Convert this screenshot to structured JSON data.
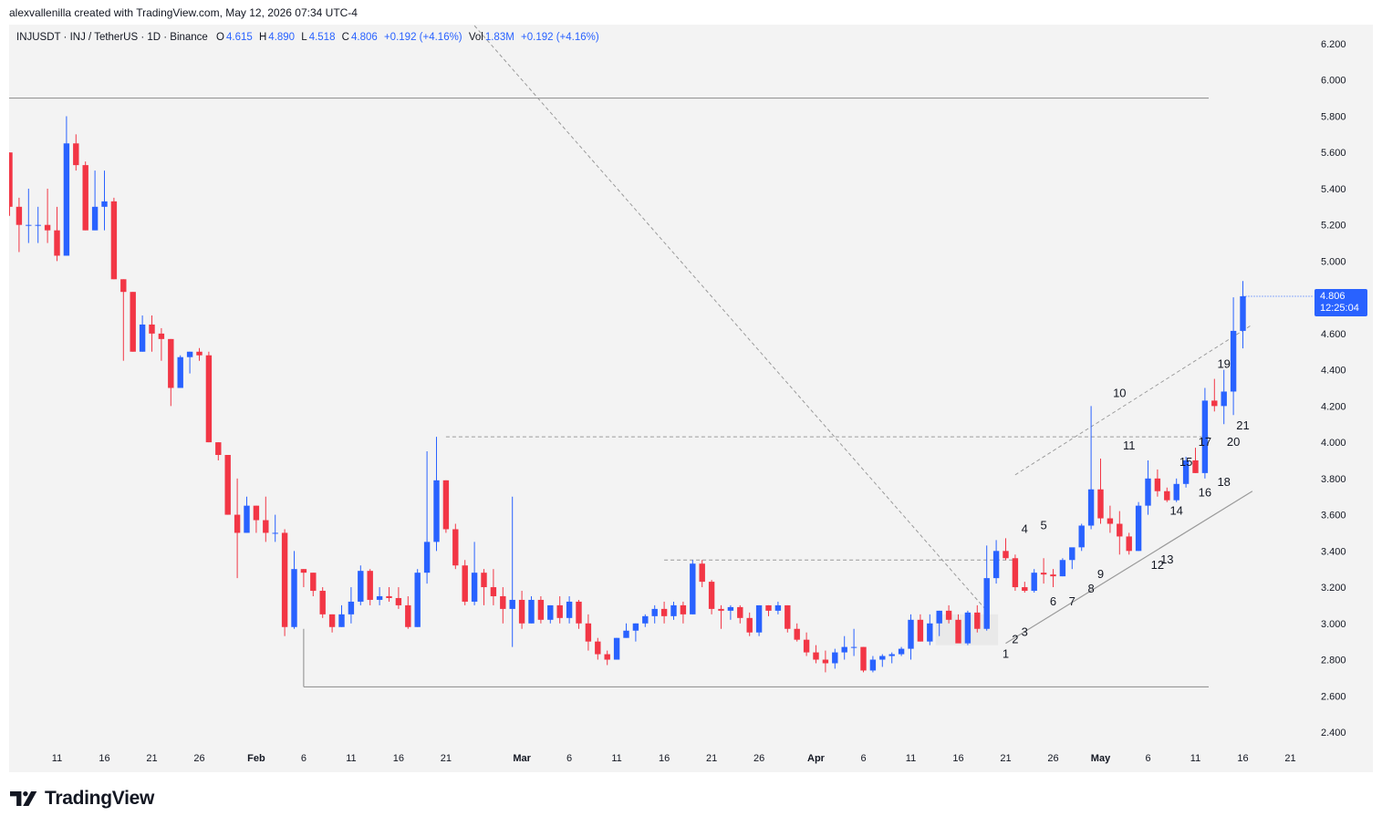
{
  "header": {
    "credit": "alexvallenilla created with TradingView.com, May 12, 2026 07:34 UTC-4"
  },
  "legend": {
    "symbol": "INJUSDT · INJ / TetherUS · 1D · Binance",
    "o_label": "O",
    "o_value": "4.615",
    "h_label": "H",
    "h_value": "4.890",
    "l_label": "L",
    "l_value": "4.518",
    "c_label": "C",
    "c_value": "4.806",
    "change": "+0.192 (+4.16%)",
    "vol_label": "Vol",
    "vol_value": "1.83M",
    "vol_change": "+0.192 (+4.16%)"
  },
  "price_tag": {
    "price": "4.806",
    "countdown": "12:25:04"
  },
  "brand": {
    "name": "TradingView"
  },
  "colors": {
    "up": "#2962ff",
    "down": "#f23645",
    "background": "#f3f3f3",
    "label_text": "#131722",
    "dashed": "#9a9a9a"
  },
  "chart_data": {
    "type": "candlestick",
    "interval": "1D",
    "ylim": [
      2.3,
      6.4
    ],
    "y_ticks": [
      "6.200",
      "6.000",
      "5.800",
      "5.600",
      "5.400",
      "5.200",
      "5.000",
      "4.800",
      "4.600",
      "4.400",
      "4.200",
      "4.000",
      "3.800",
      "3.600",
      "3.400",
      "3.200",
      "3.000",
      "2.800",
      "2.600",
      "2.400"
    ],
    "x_ticks": [
      {
        "label": "11",
        "i": 5
      },
      {
        "label": "16",
        "i": 10
      },
      {
        "label": "21",
        "i": 15
      },
      {
        "label": "26",
        "i": 20
      },
      {
        "label": "Feb",
        "i": 26
      },
      {
        "label": "6",
        "i": 31
      },
      {
        "label": "11",
        "i": 36
      },
      {
        "label": "16",
        "i": 41
      },
      {
        "label": "21",
        "i": 46
      },
      {
        "label": "Mar",
        "i": 54
      },
      {
        "label": "6",
        "i": 59
      },
      {
        "label": "11",
        "i": 64
      },
      {
        "label": "16",
        "i": 69
      },
      {
        "label": "21",
        "i": 74
      },
      {
        "label": "26",
        "i": 79
      },
      {
        "label": "Apr",
        "i": 85
      },
      {
        "label": "6",
        "i": 90
      },
      {
        "label": "11",
        "i": 95
      },
      {
        "label": "16",
        "i": 100
      },
      {
        "label": "21",
        "i": 105
      },
      {
        "label": "26",
        "i": 110
      },
      {
        "label": "May",
        "i": 115
      },
      {
        "label": "6",
        "i": 120
      },
      {
        "label": "11",
        "i": 125
      },
      {
        "label": "16",
        "i": 130
      },
      {
        "label": "21",
        "i": 135
      }
    ],
    "candles": [
      [
        5.6,
        5.6,
        5.25,
        5.3
      ],
      [
        5.3,
        5.35,
        5.05,
        5.2
      ],
      [
        5.2,
        5.4,
        5.1,
        5.2
      ],
      [
        5.2,
        5.3,
        5.1,
        5.2
      ],
      [
        5.2,
        5.4,
        5.1,
        5.17
      ],
      [
        5.17,
        5.3,
        5.0,
        5.03
      ],
      [
        5.03,
        5.8,
        5.03,
        5.65
      ],
      [
        5.65,
        5.7,
        5.5,
        5.53
      ],
      [
        5.53,
        5.55,
        5.17,
        5.17
      ],
      [
        5.17,
        5.5,
        5.17,
        5.3
      ],
      [
        5.3,
        5.5,
        5.17,
        5.33
      ],
      [
        5.33,
        5.35,
        4.9,
        4.9
      ],
      [
        4.9,
        4.9,
        4.45,
        4.83
      ],
      [
        4.83,
        4.83,
        4.5,
        4.5
      ],
      [
        4.5,
        4.7,
        4.5,
        4.65
      ],
      [
        4.65,
        4.7,
        4.5,
        4.6
      ],
      [
        4.6,
        4.63,
        4.45,
        4.57
      ],
      [
        4.57,
        4.57,
        4.2,
        4.3
      ],
      [
        4.3,
        4.48,
        4.3,
        4.47
      ],
      [
        4.47,
        4.5,
        4.38,
        4.5
      ],
      [
        4.5,
        4.52,
        4.45,
        4.48
      ],
      [
        4.48,
        4.5,
        4.0,
        4.0
      ],
      [
        4.0,
        4.0,
        3.9,
        3.93
      ],
      [
        3.93,
        3.93,
        3.6,
        3.6
      ],
      [
        3.6,
        3.8,
        3.25,
        3.5
      ],
      [
        3.5,
        3.7,
        3.5,
        3.65
      ],
      [
        3.65,
        3.65,
        3.5,
        3.57
      ],
      [
        3.57,
        3.7,
        3.45,
        3.5
      ],
      [
        3.5,
        3.6,
        3.45,
        3.5
      ],
      [
        3.5,
        3.52,
        2.93,
        2.98
      ],
      [
        2.98,
        3.4,
        2.97,
        3.3
      ],
      [
        3.3,
        3.3,
        3.2,
        3.28
      ],
      [
        3.28,
        3.28,
        3.15,
        3.18
      ],
      [
        3.18,
        3.2,
        3.03,
        3.05
      ],
      [
        3.05,
        3.05,
        2.95,
        2.98
      ],
      [
        2.98,
        3.1,
        2.98,
        3.05
      ],
      [
        3.05,
        3.2,
        3.0,
        3.12
      ],
      [
        3.12,
        3.32,
        3.1,
        3.29
      ],
      [
        3.29,
        3.3,
        3.1,
        3.13
      ],
      [
        3.13,
        3.2,
        3.1,
        3.15
      ],
      [
        3.15,
        3.2,
        3.12,
        3.14
      ],
      [
        3.14,
        3.2,
        3.08,
        3.1
      ],
      [
        3.1,
        3.15,
        2.97,
        2.98
      ],
      [
        2.98,
        3.3,
        2.98,
        3.28
      ],
      [
        3.28,
        3.95,
        3.22,
        3.45
      ],
      [
        3.45,
        4.03,
        3.4,
        3.79
      ],
      [
        3.79,
        3.79,
        3.5,
        3.52
      ],
      [
        3.52,
        3.55,
        3.3,
        3.32
      ],
      [
        3.32,
        3.35,
        3.1,
        3.12
      ],
      [
        3.12,
        3.45,
        3.1,
        3.28
      ],
      [
        3.28,
        3.3,
        3.1,
        3.2
      ],
      [
        3.2,
        3.3,
        3.1,
        3.15
      ],
      [
        3.15,
        3.2,
        3.0,
        3.08
      ],
      [
        3.08,
        3.7,
        2.87,
        3.13
      ],
      [
        3.13,
        3.18,
        2.97,
        3.0
      ],
      [
        3.0,
        3.15,
        3.0,
        3.13
      ],
      [
        3.13,
        3.15,
        3.0,
        3.02
      ],
      [
        3.02,
        3.1,
        3.0,
        3.1
      ],
      [
        3.1,
        3.15,
        3.0,
        3.03
      ],
      [
        3.03,
        3.15,
        3.0,
        3.12
      ],
      [
        3.12,
        3.13,
        2.97,
        3.0
      ],
      [
        3.0,
        3.05,
        2.85,
        2.9
      ],
      [
        2.9,
        2.92,
        2.8,
        2.83
      ],
      [
        2.83,
        2.85,
        2.77,
        2.8
      ],
      [
        2.8,
        2.92,
        2.8,
        2.92
      ],
      [
        2.92,
        3.0,
        2.92,
        2.96
      ],
      [
        2.96,
        3.0,
        2.9,
        3.0
      ],
      [
        3.0,
        3.05,
        2.98,
        3.04
      ],
      [
        3.04,
        3.1,
        3.0,
        3.08
      ],
      [
        3.08,
        3.12,
        3.0,
        3.04
      ],
      [
        3.04,
        3.12,
        3.02,
        3.1
      ],
      [
        3.1,
        3.12,
        3.0,
        3.05
      ],
      [
        3.05,
        3.35,
        3.05,
        3.33
      ],
      [
        3.33,
        3.35,
        3.2,
        3.23
      ],
      [
        3.23,
        3.24,
        3.05,
        3.08
      ],
      [
        3.08,
        3.1,
        2.97,
        3.07
      ],
      [
        3.07,
        3.1,
        3.02,
        3.09
      ],
      [
        3.09,
        3.1,
        3.0,
        3.03
      ],
      [
        3.03,
        3.06,
        2.93,
        2.95
      ],
      [
        2.95,
        3.1,
        2.93,
        3.1
      ],
      [
        3.1,
        3.1,
        3.04,
        3.07
      ],
      [
        3.07,
        3.12,
        3.05,
        3.1
      ],
      [
        3.1,
        3.1,
        2.95,
        2.97
      ],
      [
        2.97,
        3.0,
        2.9,
        2.91
      ],
      [
        2.91,
        2.95,
        2.82,
        2.84
      ],
      [
        2.84,
        2.88,
        2.78,
        2.8
      ],
      [
        2.8,
        2.85,
        2.73,
        2.78
      ],
      [
        2.78,
        2.86,
        2.75,
        2.84
      ],
      [
        2.84,
        2.93,
        2.8,
        2.87
      ],
      [
        2.87,
        2.97,
        2.82,
        2.87
      ],
      [
        2.87,
        2.87,
        2.73,
        2.74
      ],
      [
        2.74,
        2.82,
        2.73,
        2.8
      ],
      [
        2.8,
        2.83,
        2.76,
        2.82
      ],
      [
        2.82,
        2.84,
        2.78,
        2.83
      ],
      [
        2.83,
        2.87,
        2.82,
        2.86
      ],
      [
        2.86,
        3.05,
        2.8,
        3.02
      ],
      [
        3.02,
        3.05,
        2.9,
        2.9
      ],
      [
        2.9,
        3.05,
        2.88,
        3.0
      ],
      [
        3.0,
        3.07,
        2.93,
        3.07
      ],
      [
        3.07,
        3.1,
        3.0,
        3.02
      ],
      [
        3.02,
        3.05,
        2.9,
        2.89
      ],
      [
        2.89,
        3.07,
        2.88,
        3.06
      ],
      [
        3.06,
        3.1,
        2.95,
        2.97
      ],
      [
        2.97,
        3.43,
        2.96,
        3.25
      ],
      [
        3.25,
        3.46,
        3.22,
        3.4
      ],
      [
        3.4,
        3.47,
        3.35,
        3.36
      ],
      [
        3.36,
        3.38,
        3.18,
        3.2
      ],
      [
        3.2,
        3.23,
        3.17,
        3.18
      ],
      [
        3.18,
        3.3,
        3.17,
        3.28
      ],
      [
        3.28,
        3.36,
        3.22,
        3.27
      ],
      [
        3.27,
        3.3,
        3.2,
        3.26
      ],
      [
        3.26,
        3.36,
        3.26,
        3.35
      ],
      [
        3.35,
        3.4,
        3.3,
        3.42
      ],
      [
        3.42,
        3.55,
        3.4,
        3.54
      ],
      [
        3.54,
        4.2,
        3.52,
        3.74
      ],
      [
        3.74,
        3.91,
        3.55,
        3.58
      ],
      [
        3.58,
        3.65,
        3.5,
        3.55
      ],
      [
        3.55,
        3.62,
        3.38,
        3.48
      ],
      [
        3.48,
        3.5,
        3.38,
        3.4
      ],
      [
        3.4,
        3.67,
        3.4,
        3.65
      ],
      [
        3.65,
        3.9,
        3.6,
        3.8
      ],
      [
        3.8,
        3.85,
        3.7,
        3.73
      ],
      [
        3.73,
        3.75,
        3.67,
        3.68
      ],
      [
        3.68,
        3.8,
        3.67,
        3.77
      ],
      [
        3.77,
        3.92,
        3.75,
        3.9
      ],
      [
        3.9,
        3.97,
        3.83,
        3.83
      ],
      [
        3.83,
        4.3,
        3.8,
        4.23
      ],
      [
        4.23,
        4.35,
        4.17,
        4.2
      ],
      [
        4.2,
        4.4,
        4.1,
        4.28
      ],
      [
        4.28,
        4.8,
        4.15,
        4.615
      ],
      [
        4.615,
        4.89,
        4.518,
        4.806
      ]
    ],
    "annotations": [
      {
        "text": "1",
        "i": 105,
        "price": 2.81
      },
      {
        "text": "2",
        "i": 106,
        "price": 2.89
      },
      {
        "text": "3",
        "i": 107,
        "price": 2.93
      },
      {
        "text": "4",
        "i": 107,
        "price": 3.5
      },
      {
        "text": "5",
        "i": 109,
        "price": 3.52
      },
      {
        "text": "6",
        "i": 110,
        "price": 3.1
      },
      {
        "text": "7",
        "i": 112,
        "price": 3.1
      },
      {
        "text": "8",
        "i": 114,
        "price": 3.17
      },
      {
        "text": "9",
        "i": 115,
        "price": 3.25
      },
      {
        "text": "10",
        "i": 117,
        "price": 4.25
      },
      {
        "text": "11",
        "i": 118,
        "price": 3.96
      },
      {
        "text": "12",
        "i": 121,
        "price": 3.3
      },
      {
        "text": "13",
        "i": 122,
        "price": 3.33
      },
      {
        "text": "14",
        "i": 123,
        "price": 3.6
      },
      {
        "text": "15",
        "i": 124,
        "price": 3.87
      },
      {
        "text": "16",
        "i": 126,
        "price": 3.7
      },
      {
        "text": "17",
        "i": 126,
        "price": 3.98
      },
      {
        "text": "18",
        "i": 128,
        "price": 3.76
      },
      {
        "text": "19",
        "i": 128,
        "price": 4.41
      },
      {
        "text": "20",
        "i": 129,
        "price": 3.98
      },
      {
        "text": "21",
        "i": 130,
        "price": 4.07
      }
    ],
    "lines": {
      "resistance_top": 5.9,
      "support_bottom": 2.65,
      "mid_level": 4.03,
      "local_level": 3.35,
      "channel_lower": {
        "i1": 105,
        "p1": 2.89,
        "i2": 131,
        "p2": 3.73
      },
      "channel_upper": {
        "i1": 106,
        "p1": 3.82,
        "i2": 131,
        "p2": 4.65
      },
      "diagonal": {
        "i1": 49,
        "p1": 6.3,
        "i2": 103,
        "p2": 3.07
      }
    },
    "x_origin_index": 0
  }
}
